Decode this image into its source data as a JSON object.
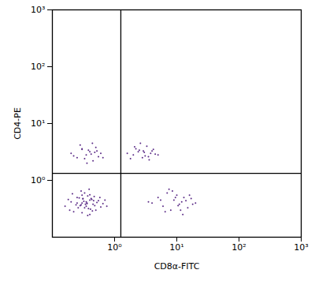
{
  "chart_data": {
    "type": "scatter",
    "log": true,
    "grid": false,
    "color": "#5a2a86",
    "marker": "dot",
    "x_label": "CD8α-FITC",
    "y_label": "CD4-PE",
    "xlim": [
      0.1,
      1000
    ],
    "ylim": [
      0.1,
      1000
    ],
    "xticks": [
      {
        "value": 1,
        "label": "10⁰"
      },
      {
        "value": 10,
        "label": "10¹"
      },
      {
        "value": 100,
        "label": "10²"
      },
      {
        "value": 1000,
        "label": "10³"
      }
    ],
    "yticks": [
      {
        "value": 1,
        "label": "10⁰"
      },
      {
        "value": 10,
        "label": "10¹"
      },
      {
        "value": 100,
        "label": "10²"
      },
      {
        "value": 1000,
        "label": "10³"
      }
    ],
    "quadrant_x": 1.26,
    "quadrant_y": 1.33,
    "x": [
      0.3,
      0.35,
      0.4,
      0.25,
      0.45,
      0.5,
      0.3,
      0.2,
      0.38,
      0.42,
      0.28,
      0.33,
      0.55,
      0.6,
      0.22,
      0.36,
      0.31,
      0.47,
      0.26,
      0.4,
      0.18,
      0.34,
      0.29,
      0.52,
      0.44,
      0.37,
      0.24,
      0.32,
      0.41,
      0.27,
      0.65,
      0.7,
      0.16,
      0.39,
      0.3,
      0.48,
      0.35,
      0.21,
      0.43,
      0.33,
      0.58,
      0.25,
      0.37,
      0.46,
      0.29,
      0.75,
      0.19,
      0.31,
      0.4,
      0.36,
      0.2,
      0.25,
      0.3,
      0.35,
      0.4,
      0.45,
      0.5,
      0.55,
      0.6,
      0.28,
      0.33,
      0.38,
      0.42,
      0.48,
      0.22,
      0.65,
      0.3,
      0.36,
      0.52,
      0.44,
      1.6,
      2,
      2.5,
      3,
      3.5,
      4,
      4.5,
      2.2,
      2.8,
      3.3,
      3.8,
      1.8,
      2.4,
      3.1,
      4.2,
      2.6,
      3.6,
      2.1,
      2.9,
      5,
      4,
      5,
      6,
      7,
      8,
      9,
      10,
      11,
      12,
      13,
      15,
      17,
      20,
      6.5,
      8.5,
      10.5,
      12.5,
      14,
      9.5,
      7.5,
      11.5,
      5.5,
      16,
      18,
      3.5
    ],
    "values": [
      0.4,
      0.35,
      0.45,
      0.5,
      0.38,
      0.3,
      0.55,
      0.42,
      0.32,
      0.48,
      0.36,
      0.6,
      0.44,
      0.34,
      0.28,
      0.4,
      0.47,
      0.52,
      0.33,
      0.25,
      0.46,
      0.38,
      0.65,
      0.41,
      0.29,
      0.53,
      0.37,
      0.43,
      0.31,
      0.49,
      0.39,
      0.45,
      0.35,
      0.7,
      0.27,
      0.36,
      0.42,
      0.58,
      0.46,
      0.33,
      0.5,
      0.4,
      0.24,
      0.44,
      0.37,
      0.35,
      0.3,
      0.48,
      0.56,
      0.39,
      3,
      2.5,
      3.5,
      2.8,
      3.2,
      2.2,
      3.8,
      2.6,
      3,
      4.2,
      2.4,
      3.4,
      2.9,
      3.1,
      2.7,
      2.5,
      3.6,
      2,
      3.3,
      4.5,
      3,
      2.8,
      3.4,
      3.1,
      2.6,
      3.3,
      2.9,
      3.6,
      2.5,
      4,
      3,
      2.4,
      3.2,
      2.7,
      3.5,
      4.5,
      2.3,
      3.9,
      3.3,
      2.8,
      0.4,
      0.5,
      0.35,
      0.6,
      0.3,
      0.45,
      0.55,
      0.38,
      0.42,
      0.5,
      0.33,
      0.48,
      0.4,
      0.28,
      0.65,
      0.36,
      0.25,
      0.44,
      0.5,
      0.7,
      0.3,
      0.45,
      0.55,
      0.38,
      0.42
    ]
  }
}
